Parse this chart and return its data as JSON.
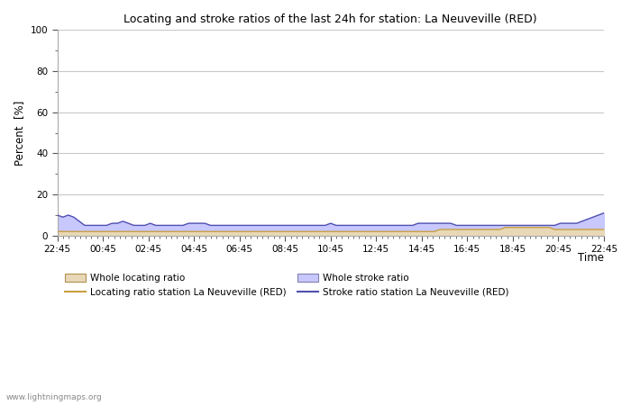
{
  "title": "Locating and stroke ratios of the last 24h for station: La Neuveville (RED)",
  "xlabel": "Time",
  "ylabel": "Percent  [%]",
  "ylim": [
    0,
    100
  ],
  "yticks_major": [
    0,
    20,
    40,
    60,
    80,
    100
  ],
  "yticks_minor": [
    10,
    30,
    50,
    70,
    90
  ],
  "background_color": "#ffffff",
  "grid_color": "#c8c8c8",
  "watermark": "www.lightningmaps.org",
  "x_labels": [
    "22:45",
    "00:45",
    "02:45",
    "04:45",
    "06:45",
    "08:45",
    "10:45",
    "12:45",
    "14:45",
    "16:45",
    "18:45",
    "20:45",
    "22:45"
  ],
  "whole_stroke_ratio": [
    10,
    9,
    10,
    9,
    7,
    5,
    5,
    5,
    5,
    5,
    6,
    6,
    7,
    6,
    5,
    5,
    5,
    6,
    5,
    5,
    5,
    5,
    5,
    5,
    6,
    6,
    6,
    6,
    5,
    5,
    5,
    5,
    5,
    5,
    5,
    5,
    5,
    5,
    5,
    5,
    5,
    5,
    5,
    5,
    5,
    5,
    5,
    5,
    5,
    5,
    6,
    5,
    5,
    5,
    5,
    5,
    5,
    5,
    5,
    5,
    5,
    5,
    5,
    5,
    5,
    5,
    6,
    6,
    6,
    6,
    6,
    6,
    6,
    5,
    5,
    5,
    5,
    5,
    5,
    5,
    5,
    5,
    5,
    5,
    5,
    5,
    5,
    5,
    5,
    5,
    5,
    5,
    6,
    6,
    6,
    6,
    7,
    8,
    9,
    10,
    11
  ],
  "whole_locating_ratio": [
    2,
    2,
    2,
    2,
    2,
    2,
    2,
    2,
    2,
    2,
    2,
    2,
    2,
    2,
    2,
    2,
    2,
    2,
    2,
    2,
    2,
    2,
    2,
    2,
    2,
    2,
    2,
    2,
    2,
    2,
    2,
    2,
    2,
    2,
    2,
    2,
    2,
    2,
    2,
    2,
    2,
    2,
    2,
    2,
    2,
    2,
    2,
    2,
    2,
    2,
    2,
    2,
    2,
    2,
    2,
    2,
    2,
    2,
    2,
    2,
    2,
    2,
    2,
    2,
    2,
    2,
    2,
    2,
    2,
    2,
    3,
    3,
    3,
    3,
    3,
    3,
    3,
    3,
    3,
    3,
    3,
    3,
    4,
    4,
    4,
    4,
    4,
    4,
    4,
    4,
    4,
    3,
    3,
    3,
    3,
    3,
    3,
    3,
    3,
    3,
    3
  ],
  "station_locating_ratio": [
    2,
    2,
    2,
    2,
    2,
    2,
    2,
    2,
    2,
    2,
    2,
    2,
    2,
    2,
    2,
    2,
    2,
    2,
    2,
    2,
    2,
    2,
    2,
    2,
    2,
    2,
    2,
    2,
    2,
    2,
    2,
    2,
    2,
    2,
    2,
    2,
    2,
    2,
    2,
    2,
    2,
    2,
    2,
    2,
    2,
    2,
    2,
    2,
    2,
    2,
    2,
    2,
    2,
    2,
    2,
    2,
    2,
    2,
    2,
    2,
    2,
    2,
    2,
    2,
    2,
    2,
    2,
    2,
    2,
    2,
    3,
    3,
    3,
    3,
    3,
    3,
    3,
    3,
    3,
    3,
    3,
    3,
    4,
    4,
    4,
    4,
    4,
    4,
    4,
    4,
    4,
    3,
    3,
    3,
    3,
    3,
    3,
    3,
    3,
    3,
    3
  ],
  "station_stroke_ratio": [
    10,
    9,
    10,
    9,
    7,
    5,
    5,
    5,
    5,
    5,
    6,
    6,
    7,
    6,
    5,
    5,
    5,
    6,
    5,
    5,
    5,
    5,
    5,
    5,
    6,
    6,
    6,
    6,
    5,
    5,
    5,
    5,
    5,
    5,
    5,
    5,
    5,
    5,
    5,
    5,
    5,
    5,
    5,
    5,
    5,
    5,
    5,
    5,
    5,
    5,
    6,
    5,
    5,
    5,
    5,
    5,
    5,
    5,
    5,
    5,
    5,
    5,
    5,
    5,
    5,
    5,
    6,
    6,
    6,
    6,
    6,
    6,
    6,
    5,
    5,
    5,
    5,
    5,
    5,
    5,
    5,
    5,
    5,
    5,
    5,
    5,
    5,
    5,
    5,
    5,
    5,
    5,
    6,
    6,
    6,
    6,
    7,
    8,
    9,
    10,
    11
  ],
  "fill_stroke_color": "#c8c8ff",
  "fill_locating_color": "#e8d8b8",
  "line_stroke_color": "#5050b0",
  "line_locating_color": "#c8a040",
  "legend_labels": [
    "Whole locating ratio",
    "Locating ratio station La Neuveville (RED)",
    "Whole stroke ratio",
    "Stroke ratio station La Neuveville (RED)"
  ]
}
